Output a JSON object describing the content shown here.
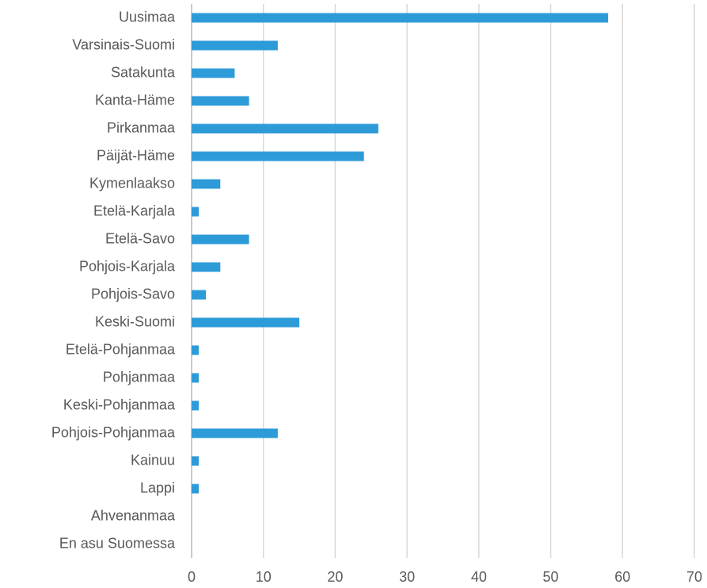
{
  "chart_data": {
    "type": "hbar",
    "categories": [
      "Uusimaa",
      "Varsinais-Suomi",
      "Satakunta",
      "Kanta-Häme",
      "Pirkanmaa",
      "Päijät-Häme",
      "Kymenlaakso",
      "Etelä-Karjala",
      "Etelä-Savo",
      "Pohjois-Karjala",
      "Pohjois-Savo",
      "Keski-Suomi",
      "Etelä-Pohjanmaa",
      "Pohjanmaa",
      "Keski-Pohjanmaa",
      "Pohjois-Pohjanmaa",
      "Kainuu",
      "Lappi",
      "Ahvenanmaa",
      "En asu Suomessa"
    ],
    "values": [
      58,
      12,
      6,
      8,
      26,
      24,
      4,
      1,
      8,
      4,
      2,
      15,
      1,
      1,
      1,
      12,
      1,
      1,
      0,
      0
    ],
    "color": "#2e9bd9",
    "xlim": [
      0,
      70
    ],
    "xticks": [
      0,
      10,
      20,
      30,
      40,
      50,
      60,
      70
    ],
    "grid": true
  }
}
